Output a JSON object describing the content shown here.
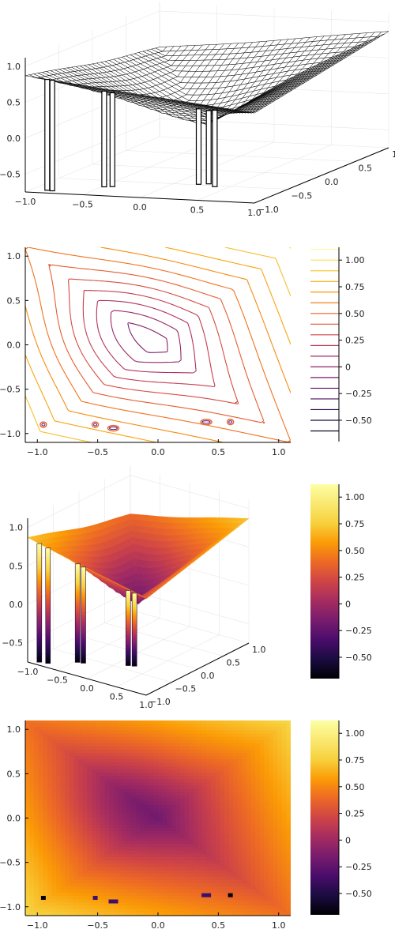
{
  "chart_data": [
    {
      "type": "wireframe",
      "title": "",
      "x_ticks": [
        "−1.0",
        "−0.5",
        "0.0",
        "0.5",
        "1.0"
      ],
      "y_ticks": [
        "−1.0",
        "−0.5",
        "0.0",
        "0.5",
        "1.0"
      ],
      "z_ticks": [
        "1.0",
        "0.5",
        "0.0",
        "−0.5"
      ],
      "xlim": [
        -1,
        1
      ],
      "ylim": [
        -1,
        1
      ],
      "zlim": [
        -0.75,
        1.12
      ],
      "grid": true,
      "line_color": "#000000"
    },
    {
      "type": "contour",
      "title": "",
      "x_ticks": [
        "−1.0",
        "−0.5",
        "0.0",
        "0.5",
        "1.0"
      ],
      "y_ticks": [
        "1.0",
        "0.5",
        "0.0",
        "−0.5",
        "−1.0"
      ],
      "xlim": [
        -1.1,
        1.1
      ],
      "ylim": [
        -1.1,
        1.1
      ],
      "colorbar_ticks": [
        "1.00",
        "0.75",
        "0.50",
        "0.25",
        "0",
        "−0.25",
        "−0.50"
      ],
      "colorbar_values": [
        1.0,
        0.75,
        0.5,
        0.25,
        0,
        -0.25,
        -0.5
      ],
      "clim": [
        -0.7,
        1.12
      ],
      "colormap": "inferno",
      "local_minima": [
        {
          "x": -0.95,
          "y": -0.9
        },
        {
          "x": -0.52,
          "y": -0.9
        },
        {
          "x": -0.37,
          "y": -0.94
        },
        {
          "x": 0.4,
          "y": -0.87
        },
        {
          "x": 0.6,
          "y": -0.87
        }
      ]
    },
    {
      "type": "surface",
      "title": "",
      "x_ticks": [
        "−1.0",
        "−0.5",
        "0.0",
        "0.5",
        "1.0"
      ],
      "y_ticks": [
        "−1.0",
        "−0.5",
        "0.0",
        "0.5",
        "1.0"
      ],
      "z_ticks": [
        "1.0",
        "0.5",
        "0.0",
        "−0.5"
      ],
      "xlim": [
        -1,
        1
      ],
      "ylim": [
        -1,
        1
      ],
      "zlim": [
        -0.75,
        1.12
      ],
      "colorbar_ticks": [
        "1.00",
        "0.75",
        "0.50",
        "0.25",
        "0",
        "−0.25",
        "−0.50"
      ],
      "colorbar_values": [
        1.0,
        0.75,
        0.5,
        0.25,
        0,
        -0.25,
        -0.5
      ],
      "clim": [
        -0.7,
        1.12
      ],
      "colormap": "inferno"
    },
    {
      "type": "heatmap",
      "title": "",
      "x_ticks": [
        "−1.0",
        "−0.5",
        "0.0",
        "0.5",
        "1.0"
      ],
      "y_ticks": [
        "1.0",
        "0.5",
        "0.0",
        "−0.5",
        "−1.0"
      ],
      "xlim": [
        -1.1,
        1.1
      ],
      "ylim": [
        -1.1,
        1.1
      ],
      "colorbar_ticks": [
        "1.00",
        "0.75",
        "0.50",
        "0.25",
        "0",
        "−0.25",
        "−0.50"
      ],
      "colorbar_values": [
        1.0,
        0.75,
        0.5,
        0.25,
        0,
        -0.25,
        -0.5
      ],
      "clim": [
        -0.7,
        1.12
      ],
      "colormap": "inferno"
    }
  ]
}
